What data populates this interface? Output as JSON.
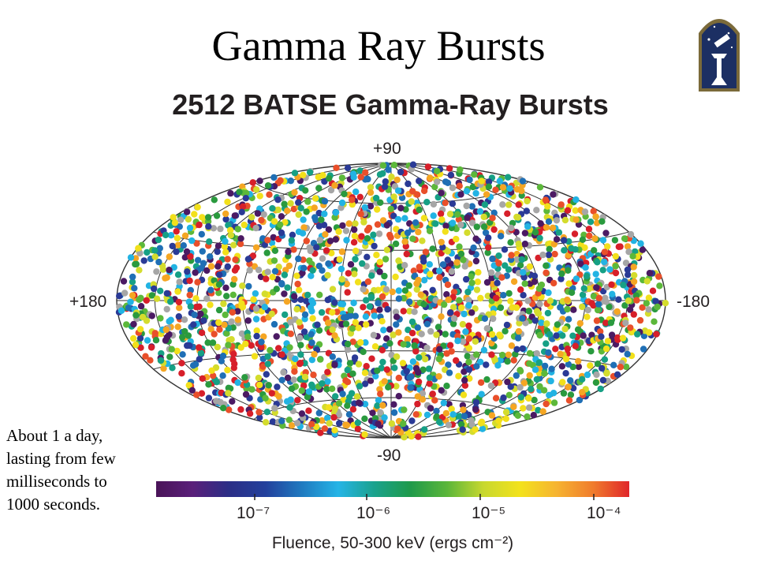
{
  "slide": {
    "title": "Gamma Ray Bursts",
    "note_lines": [
      "About 1 a day,",
      "lasting from few",
      "milliseconds to",
      "1000 seconds."
    ],
    "logo_icon": "telescope-emblem-icon"
  },
  "chart_data": {
    "type": "scatter",
    "projection": "aitoff-hammer all-sky (galactic coordinates)",
    "title": "2512 BATSE Gamma-Ray Bursts",
    "burst_count": 2512,
    "lat_labels": {
      "top": "+90",
      "bottom": "-90"
    },
    "lon_labels": {
      "left": "+180",
      "right": "-180"
    },
    "grid": true,
    "colorbar": {
      "label": "Fluence, 50-300 keV (ergs cm⁻²)",
      "scale": "log",
      "ticks": [
        "10⁻⁷",
        "10⁻⁶",
        "10⁻⁵",
        "10⁻⁴"
      ],
      "colors": [
        "#4a1458",
        "#5a1f7a",
        "#2b2e86",
        "#23409c",
        "#1f7ac0",
        "#25b4e6",
        "#1aa28c",
        "#1f9a4a",
        "#5bb63a",
        "#c8d82e",
        "#f3e21c",
        "#f6b431",
        "#f07c2c",
        "#e0262a"
      ]
    },
    "point_colors": [
      "#4b1a63",
      "#2a3a96",
      "#1f6fb5",
      "#22b3e3",
      "#16a085",
      "#2a9a3e",
      "#5cb83a",
      "#d4dc2d",
      "#f2e01b",
      "#f5a623",
      "#e94f2a",
      "#d71f2a",
      "#a6a6a6"
    ]
  }
}
